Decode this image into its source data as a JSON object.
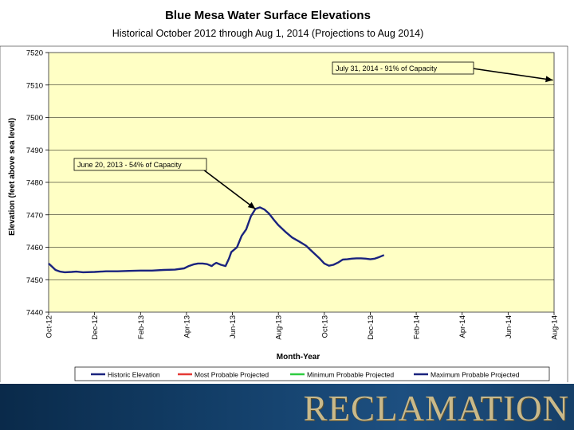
{
  "chart_data": {
    "type": "line",
    "title": "Blue Mesa Water Surface Elevations",
    "subtitle": "Historical October 2012 through Aug 1, 2014 (Projections to Aug 2014)",
    "xlabel": "Month-Year",
    "ylabel": "Elevation (feet above sea level)",
    "ylim": [
      7440,
      7520
    ],
    "yticks": [
      7440,
      7450,
      7460,
      7470,
      7480,
      7490,
      7500,
      7510,
      7520
    ],
    "xlim": [
      0,
      22
    ],
    "xticks": [
      "Oct-12",
      "Dec-12",
      "Feb-13",
      "Apr-13",
      "Jun-13",
      "Aug-13",
      "Oct-13",
      "Dec-13",
      "Feb-14",
      "Apr-14",
      "Jun-14",
      "Aug-14"
    ],
    "grid": "horizontal",
    "legend_position": "bottom",
    "series": [
      {
        "name": "Historic Elevation",
        "color": "#1a237e",
        "x": [
          0,
          0.15,
          0.3,
          0.5,
          0.7,
          1.0,
          1.2,
          1.5,
          2.0,
          2.5,
          3.0,
          3.5,
          4.0,
          4.5,
          5.0,
          5.5,
          5.9,
          6.1,
          6.3,
          6.5,
          6.7,
          6.9,
          7.1,
          7.2,
          7.3,
          7.5,
          7.7,
          7.85,
          7.95,
          8.2,
          8.4,
          8.6,
          8.8,
          9.0,
          9.2,
          9.4,
          9.6,
          9.8,
          10.0,
          10.3,
          10.6,
          10.9,
          11.2,
          11.5,
          11.8,
          12.0,
          12.2,
          12.4,
          12.6,
          12.8,
          13.0,
          13.2,
          13.4,
          13.6,
          13.8,
          14.0,
          14.2,
          14.4,
          14.6
        ],
        "values": [
          7455,
          7454,
          7453,
          7452.5,
          7452.3,
          7452.4,
          7452.5,
          7452.3,
          7452.4,
          7452.6,
          7452.6,
          7452.7,
          7452.8,
          7452.8,
          7453.0,
          7453.1,
          7453.5,
          7454.2,
          7454.7,
          7455.0,
          7455.0,
          7454.8,
          7454.2,
          7454.8,
          7455.2,
          7454.6,
          7454.2,
          7456.5,
          7458.5,
          7460.0,
          7463.5,
          7465.5,
          7469.5,
          7471.8,
          7472.3,
          7471.6,
          7470.3,
          7468.5,
          7466.8,
          7464.8,
          7463.0,
          7461.8,
          7460.5,
          7458.5,
          7456.5,
          7455.0,
          7454.3,
          7454.6,
          7455.3,
          7456.2,
          7456.3,
          7456.5,
          7456.6,
          7456.6,
          7456.5,
          7456.3,
          7456.5,
          7457.0,
          7457.6
        ]
      },
      {
        "name": "Most Probable Projected",
        "color": "#e53935",
        "x": [],
        "values": []
      },
      {
        "name": "Minimum Probable Projected",
        "color": "#2ecc40",
        "x": [],
        "values": []
      },
      {
        "name": "Maximum Probable Projected",
        "color": "#1a237e",
        "x": [],
        "values": []
      }
    ],
    "annotations": [
      {
        "text": "July 31, 2014 - 91% of Capacity",
        "x": 21.95,
        "y": 7511.5
      },
      {
        "text": "June 20, 2013 - 54% of Capacity",
        "x": 9.0,
        "y": 7471.8
      }
    ]
  },
  "footer": {
    "brand": "RECLAMATION"
  }
}
